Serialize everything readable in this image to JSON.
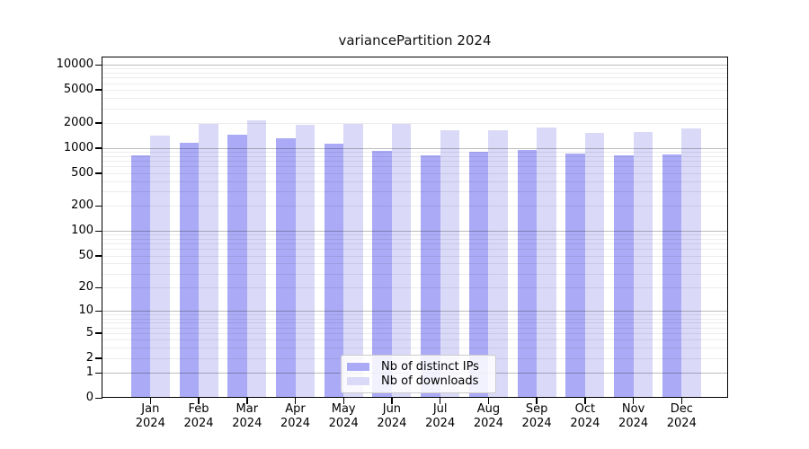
{
  "title": "variancePartition 2024",
  "chart_data": {
    "type": "bar",
    "title": "variancePartition 2024",
    "months": [
      "Jan",
      "Feb",
      "Mar",
      "Apr",
      "May",
      "Jun",
      "Jul",
      "Aug",
      "Sep",
      "Oct",
      "Nov",
      "Dec"
    ],
    "year": "2024",
    "series": [
      {
        "name": "Nb of distinct IPs",
        "color": "#aaaaf6",
        "values": [
          800,
          1130,
          1400,
          1270,
          1100,
          890,
          790,
          870,
          915,
          840,
          800,
          810
        ]
      },
      {
        "name": "Nb of downloads",
        "color": "#dadaf8",
        "values": [
          1370,
          1910,
          2100,
          1840,
          1880,
          1920,
          1590,
          1600,
          1730,
          1490,
          1510,
          1690
        ]
      }
    ],
    "yscale": "log10(1+v)",
    "yticks": [
      0,
      1,
      2,
      5,
      10,
      20,
      50,
      100,
      200,
      500,
      1000,
      2000,
      5000,
      10000
    ],
    "ylim": [
      0,
      12000
    ],
    "xlabel": "",
    "ylabel": "",
    "grid": "horizontal major+minor, drawn over bars",
    "legend_position": "lower center",
    "colors": {
      "bar_distinct_ips": "#aaaaf6",
      "bar_downloads": "#dadaf8",
      "grid_major": "#bdbdbd",
      "grid_minor": "#ececec",
      "frame": "#000000",
      "background": "#ffffff"
    }
  }
}
